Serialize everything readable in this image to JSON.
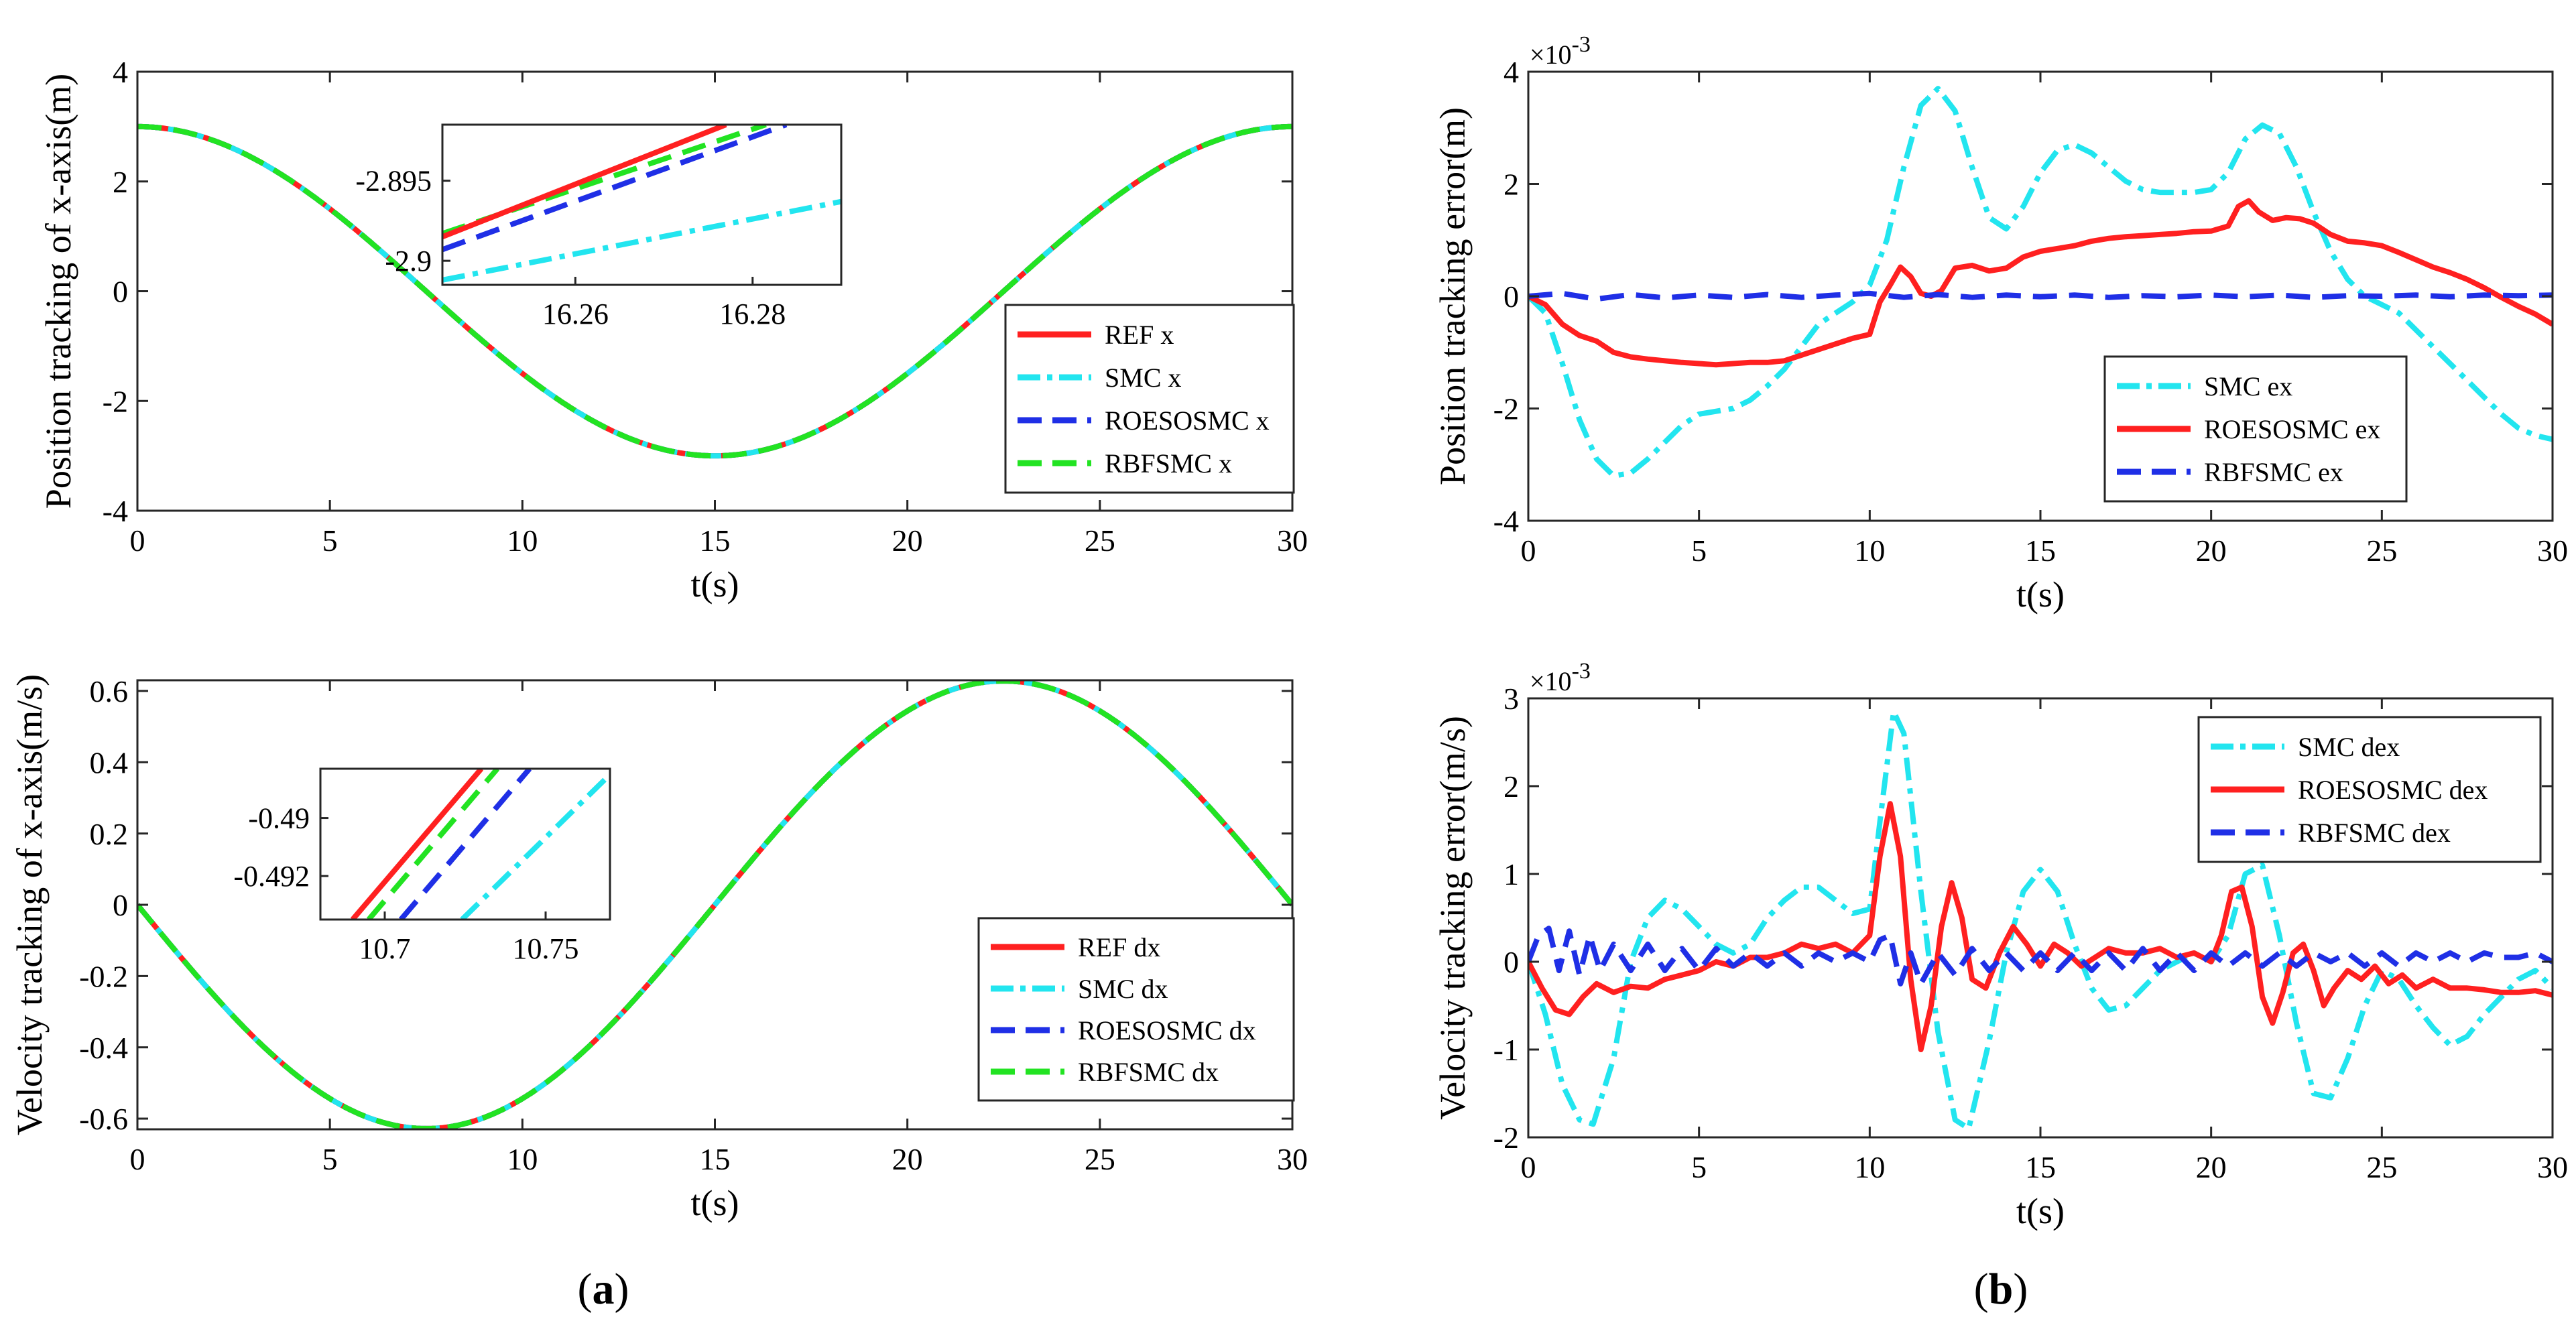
{
  "panel_labels": {
    "a": "a",
    "b": "b"
  },
  "colors": {
    "ref": "#ff2020",
    "smc": "#22e5ef",
    "roeso": "#1f2fe6",
    "rbf": "#22e322"
  },
  "chart_data": [
    {
      "id": "pos",
      "type": "line",
      "xlabel": "t(s)",
      "ylabel": "Position tracking of x-axis(m)",
      "xlim": [
        0,
        30
      ],
      "ylim": [
        -4,
        4
      ],
      "xticks": [
        0,
        5,
        10,
        15,
        20,
        25,
        30
      ],
      "yticks": [
        -4,
        -2,
        0,
        2,
        4
      ],
      "legend_location": "lower-right",
      "series": [
        {
          "name": "REF x",
          "key": "ref",
          "style": "solid"
        },
        {
          "name": "SMC x",
          "key": "smc",
          "style": "dashdot"
        },
        {
          "name": "ROESOSMC x",
          "key": "roeso",
          "style": "dashed"
        },
        {
          "name": "RBFSMC x",
          "key": "rbf",
          "style": "dashed"
        }
      ],
      "model": "3*cos(2*pi*t/30)",
      "inset": {
        "xlim": [
          16.245,
          16.29
        ],
        "ylim": [
          -2.9015,
          -2.8915
        ],
        "xticks": [
          16.26,
          16.28
        ],
        "yticks": [
          -2.895,
          -2.9
        ],
        "xtick_labels": [
          "16.26",
          "16.28"
        ],
        "ytick_labels": [
          "-2.895",
          "-2.9"
        ],
        "lines": [
          {
            "key": "smc",
            "style": "dashdot",
            "from": [
              16.245,
              -2.9012
            ],
            "to": [
              16.29,
              -2.8963
            ]
          },
          {
            "key": "roeso",
            "style": "dashed",
            "from": [
              16.245,
              -2.8993
            ],
            "to": [
              16.2838,
              -2.8915
            ]
          },
          {
            "key": "rbf",
            "style": "dashed",
            "from": [
              16.245,
              -2.8983
            ],
            "to": [
              16.2815,
              -2.8915
            ]
          },
          {
            "key": "ref",
            "style": "solid",
            "from": [
              16.245,
              -2.8985
            ],
            "to": [
              16.277,
              -2.8915
            ]
          }
        ]
      }
    },
    {
      "id": "vel",
      "type": "line",
      "xlabel": "t(s)",
      "ylabel": "Velocity tracking of x-axis(m/s)",
      "xlim": [
        0,
        30
      ],
      "ylim": [
        -0.63,
        0.63
      ],
      "xticks": [
        0,
        5,
        10,
        15,
        20,
        25,
        30
      ],
      "yticks": [
        -0.6,
        -0.4,
        -0.2,
        0,
        0.2,
        0.4,
        0.6
      ],
      "legend_location": "lower-right",
      "series": [
        {
          "name": "REF dx",
          "key": "ref",
          "style": "solid"
        },
        {
          "name": "SMC dx",
          "key": "smc",
          "style": "dashdot"
        },
        {
          "name": "ROESOSMC dx",
          "key": "roeso",
          "style": "dashed"
        },
        {
          "name": "RBFSMC dx",
          "key": "rbf",
          "style": "dashed"
        }
      ],
      "model": "-0.628*sin(2*pi*t/30)",
      "inset": {
        "xlim": [
          10.68,
          10.77
        ],
        "ylim": [
          -0.4935,
          -0.4883
        ],
        "xticks": [
          10.7,
          10.75
        ],
        "yticks": [
          -0.49,
          -0.492
        ],
        "xtick_labels": [
          "10.7",
          "10.75"
        ],
        "ytick_labels": [
          "-0.49",
          "-0.492"
        ],
        "lines": [
          {
            "key": "ref",
            "style": "solid",
            "from": [
              10.69,
              -0.4935
            ],
            "to": [
              10.73,
              -0.4883
            ]
          },
          {
            "key": "rbf",
            "style": "dashed",
            "from": [
              10.695,
              -0.4935
            ],
            "to": [
              10.735,
              -0.4883
            ]
          },
          {
            "key": "roeso",
            "style": "dashed",
            "from": [
              10.705,
              -0.4935
            ],
            "to": [
              10.745,
              -0.4883
            ]
          },
          {
            "key": "smc",
            "style": "dashdot",
            "from": [
              10.724,
              -0.4935
            ],
            "to": [
              10.77,
              -0.4885
            ]
          }
        ]
      }
    },
    {
      "id": "pos_err",
      "type": "line",
      "xlabel": "t(s)",
      "ylabel": "Position tracking error(m)",
      "exponent_label": "×10",
      "exponent": "-3",
      "xlim": [
        0,
        30
      ],
      "ylim": [
        -4,
        4
      ],
      "xticks": [
        0,
        5,
        10,
        15,
        20,
        25,
        30
      ],
      "yticks": [
        -4,
        -2,
        0,
        2,
        4
      ],
      "legend_location": "center",
      "series": [
        {
          "name": "SMC ex",
          "key": "smc",
          "style": "dashdot",
          "x": [
            0,
            0.5,
            1,
            1.5,
            2,
            2.5,
            3,
            3.5,
            4,
            4.5,
            5,
            5.5,
            6,
            6.5,
            7,
            7.5,
            8,
            8.5,
            9,
            9.5,
            10,
            10.5,
            11,
            11.5,
            12,
            12.5,
            13,
            13.5,
            14,
            14.5,
            15,
            15.5,
            16,
            16.5,
            17,
            17.5,
            18,
            18.5,
            19,
            19.5,
            20,
            20.5,
            21,
            21.5,
            22,
            22.5,
            23,
            23.5,
            24,
            24.5,
            25,
            25.5,
            26,
            26.5,
            27,
            27.5,
            28,
            28.5,
            29,
            29.5,
            30
          ],
          "values": [
            0,
            -0.3,
            -1.2,
            -2.2,
            -2.9,
            -3.2,
            -3.15,
            -2.9,
            -2.6,
            -2.3,
            -2.1,
            -2.05,
            -2.0,
            -1.85,
            -1.6,
            -1.3,
            -0.9,
            -0.5,
            -0.3,
            -0.1,
            0.2,
            1.0,
            2.3,
            3.4,
            3.7,
            3.3,
            2.3,
            1.4,
            1.2,
            1.6,
            2.2,
            2.6,
            2.7,
            2.55,
            2.3,
            2.05,
            1.9,
            1.85,
            1.85,
            1.85,
            1.9,
            2.2,
            2.8,
            3.05,
            2.9,
            2.3,
            1.5,
            0.8,
            0.3,
            0,
            -0.15,
            -0.3,
            -0.6,
            -0.9,
            -1.2,
            -1.5,
            -1.8,
            -2.1,
            -2.35,
            -2.48,
            -2.55
          ]
        },
        {
          "name": "ROESOSMC ex",
          "key": "ref",
          "style": "solid",
          "x": [
            0,
            0.5,
            1,
            1.5,
            2,
            2.5,
            3,
            3.5,
            4,
            4.5,
            5,
            5.5,
            6,
            6.5,
            7,
            7.5,
            8,
            8.5,
            9,
            9.5,
            10,
            10.3,
            10.6,
            10.9,
            11.2,
            11.5,
            11.8,
            12.1,
            12.5,
            13,
            13.5,
            14,
            14.5,
            15,
            15.5,
            16,
            16.5,
            17,
            17.5,
            18,
            18.5,
            19,
            19.5,
            20,
            20.5,
            20.8,
            21.1,
            21.4,
            21.8,
            22.2,
            22.6,
            23,
            23.5,
            24,
            24.5,
            25,
            25.5,
            26,
            26.5,
            27,
            27.5,
            28,
            28.5,
            29,
            29.5,
            30
          ],
          "values": [
            0,
            -0.15,
            -0.5,
            -0.7,
            -0.8,
            -1.0,
            -1.08,
            -1.12,
            -1.15,
            -1.18,
            -1.2,
            -1.22,
            -1.2,
            -1.18,
            -1.18,
            -1.15,
            -1.05,
            -0.95,
            -0.85,
            -0.75,
            -0.68,
            -0.1,
            0.2,
            0.52,
            0.35,
            0.05,
            0.0,
            0.1,
            0.5,
            0.55,
            0.45,
            0.5,
            0.7,
            0.8,
            0.85,
            0.9,
            0.98,
            1.03,
            1.06,
            1.08,
            1.1,
            1.12,
            1.15,
            1.16,
            1.25,
            1.6,
            1.7,
            1.5,
            1.35,
            1.4,
            1.38,
            1.3,
            1.1,
            0.98,
            0.95,
            0.9,
            0.78,
            0.65,
            0.52,
            0.42,
            0.3,
            0.15,
            -0.02,
            -0.18,
            -0.32,
            -0.5
          ]
        },
        {
          "name": "RBFSMC ex",
          "key": "roeso",
          "style": "dashed",
          "x": [
            0,
            1,
            2,
            3,
            4,
            5,
            6,
            7,
            8,
            9,
            10,
            11,
            12,
            13,
            14,
            15,
            16,
            17,
            18,
            19,
            20,
            21,
            22,
            23,
            24,
            25,
            26,
            27,
            28,
            29,
            30
          ],
          "values": [
            0,
            0.05,
            -0.05,
            0.03,
            -0.03,
            0.02,
            -0.02,
            0.03,
            -0.02,
            0.02,
            0.05,
            -0.02,
            0.03,
            -0.02,
            0.02,
            -0.01,
            0.02,
            -0.02,
            0.01,
            -0.01,
            0.02,
            -0.01,
            0.02,
            -0.02,
            0.01,
            0,
            0.02,
            -0.01,
            0.02,
            0.01,
            0.02
          ]
        }
      ]
    },
    {
      "id": "vel_err",
      "type": "line",
      "xlabel": "t(s)",
      "ylabel": "Velocity tracking error(m/s)",
      "exponent_label": "×10",
      "exponent": "-3",
      "xlim": [
        0,
        30
      ],
      "ylim": [
        -2,
        3
      ],
      "xticks": [
        0,
        5,
        10,
        15,
        20,
        25,
        30
      ],
      "yticks": [
        -2,
        -1,
        0,
        1,
        2,
        3
      ],
      "legend_location": "top-right",
      "series": [
        {
          "name": "SMC dex",
          "key": "smc",
          "style": "dashdot",
          "x": [
            0,
            0.5,
            1,
            1.5,
            1.9,
            2.5,
            3,
            3.5,
            4,
            4.5,
            5,
            5.5,
            6,
            6.5,
            7,
            7.5,
            8,
            8.5,
            9,
            9.5,
            10,
            10.3,
            10.7,
            11,
            11.5,
            12,
            12.5,
            12.9,
            13.5,
            14,
            14.5,
            15,
            15.5,
            16,
            16.5,
            17,
            17.5,
            18,
            18.5,
            19,
            19.5,
            20,
            20.5,
            21,
            21.5,
            22,
            22.5,
            23,
            23.5,
            24,
            24.5,
            25,
            25.5,
            26,
            26.5,
            27,
            27.5,
            28,
            28.5,
            29,
            29.5,
            30
          ],
          "values": [
            0,
            -0.6,
            -1.4,
            -1.8,
            -1.85,
            -1.1,
            0.0,
            0.5,
            0.7,
            0.6,
            0.4,
            0.2,
            0.1,
            0.2,
            0.5,
            0.7,
            0.85,
            0.85,
            0.7,
            0.55,
            0.6,
            1.6,
            2.85,
            2.6,
            0.8,
            -0.8,
            -1.8,
            -1.9,
            -0.9,
            0.1,
            0.8,
            1.05,
            0.8,
            0.2,
            -0.3,
            -0.55,
            -0.5,
            -0.3,
            -0.1,
            0.0,
            0.1,
            0.0,
            0.3,
            1.0,
            1.1,
            0.3,
            -0.7,
            -1.5,
            -1.55,
            -1.1,
            -0.5,
            -0.1,
            -0.2,
            -0.5,
            -0.75,
            -0.95,
            -0.85,
            -0.6,
            -0.4,
            -0.2,
            -0.1,
            -0.3
          ]
        },
        {
          "name": "ROESOSMC dex",
          "key": "ref",
          "style": "solid",
          "x": [
            0,
            0.4,
            0.8,
            1.2,
            1.6,
            2,
            2.5,
            3,
            3.5,
            4,
            4.5,
            5,
            5.5,
            6,
            6.5,
            7,
            7.5,
            8,
            8.5,
            9,
            9.5,
            10,
            10.3,
            10.6,
            10.9,
            11.2,
            11.5,
            11.8,
            12.1,
            12.4,
            12.7,
            13,
            13.4,
            13.8,
            14.2,
            14.6,
            15,
            15.4,
            15.8,
            16.2,
            16.6,
            17,
            17.5,
            18,
            18.5,
            19,
            19.5,
            20,
            20.3,
            20.6,
            20.9,
            21.2,
            21.5,
            21.8,
            22.1,
            22.4,
            22.7,
            23,
            23.3,
            23.6,
            24,
            24.4,
            24.8,
            25.2,
            25.6,
            26,
            26.5,
            27,
            27.5,
            28,
            28.5,
            29,
            29.5,
            30
          ],
          "values": [
            0,
            -0.3,
            -0.55,
            -0.6,
            -0.4,
            -0.25,
            -0.35,
            -0.28,
            -0.3,
            -0.2,
            -0.15,
            -0.1,
            0.0,
            -0.05,
            0.05,
            0.05,
            0.1,
            0.2,
            0.15,
            0.2,
            0.1,
            0.3,
            1.2,
            1.8,
            1.2,
            -0.2,
            -1.0,
            -0.5,
            0.4,
            0.9,
            0.5,
            -0.2,
            -0.3,
            0.1,
            0.4,
            0.2,
            -0.05,
            0.2,
            0.1,
            -0.05,
            0.05,
            0.15,
            0.1,
            0.1,
            0.15,
            0.05,
            0.1,
            0.0,
            0.3,
            0.8,
            0.85,
            0.4,
            -0.4,
            -0.7,
            -0.35,
            0.1,
            0.2,
            -0.1,
            -0.5,
            -0.3,
            -0.1,
            -0.2,
            -0.05,
            -0.25,
            -0.15,
            -0.3,
            -0.2,
            -0.3,
            -0.3,
            -0.32,
            -0.35,
            -0.35,
            -0.33,
            -0.38
          ]
        },
        {
          "name": "RBFSMC dex",
          "key": "roeso",
          "style": "dashed",
          "x": [
            0,
            0.3,
            0.6,
            0.9,
            1.2,
            1.5,
            1.8,
            2.1,
            2.5,
            3,
            3.5,
            4,
            4.5,
            5,
            5.5,
            6,
            6.5,
            7,
            7.5,
            8,
            8.5,
            9,
            9.5,
            10,
            10.3,
            10.6,
            10.9,
            11.2,
            11.5,
            12,
            12.5,
            13,
            13.5,
            14,
            14.5,
            15,
            15.5,
            16,
            16.5,
            17,
            17.5,
            18,
            18.5,
            19,
            19.5,
            20,
            20.5,
            21,
            21.5,
            22,
            22.5,
            23,
            23.5,
            24,
            24.5,
            25,
            25.5,
            26,
            26.5,
            27,
            27.5,
            28,
            28.5,
            29,
            29.5,
            30
          ],
          "values": [
            0,
            0.3,
            0.38,
            -0.1,
            0.35,
            -0.15,
            0.3,
            -0.1,
            0.2,
            -0.1,
            0.2,
            -0.1,
            0.15,
            -0.1,
            0.15,
            -0.05,
            0.1,
            -0.05,
            0.1,
            -0.05,
            0.1,
            0.0,
            0.1,
            0.0,
            0.25,
            0.3,
            -0.25,
            0.1,
            -0.25,
            0.1,
            -0.15,
            0.15,
            -0.1,
            0.1,
            -0.1,
            0.1,
            -0.1,
            0.1,
            -0.1,
            0.1,
            -0.1,
            0.15,
            -0.1,
            0.1,
            -0.1,
            0.1,
            -0.05,
            0.1,
            -0.05,
            0.1,
            -0.05,
            0.1,
            0.0,
            0.1,
            -0.05,
            0.1,
            -0.05,
            0.1,
            0.0,
            0.1,
            0.0,
            0.1,
            0.05,
            0.05,
            0.1,
            0.0
          ]
        }
      ]
    }
  ]
}
